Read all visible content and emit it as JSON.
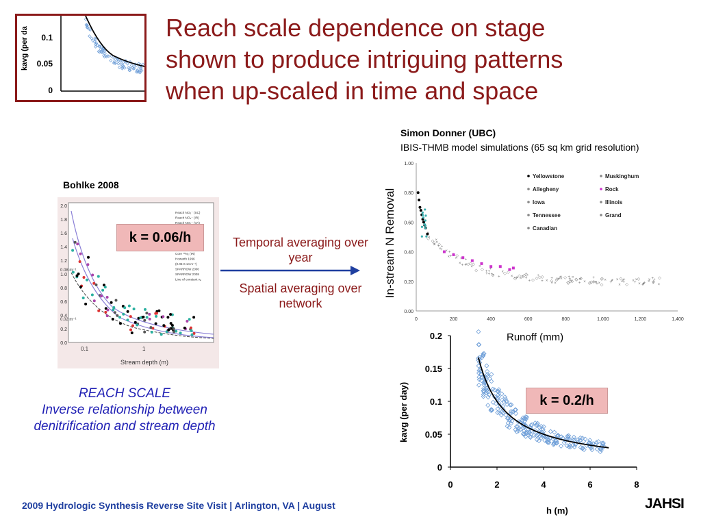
{
  "title_lines": [
    "Reach scale dependence on stage",
    "shown to produce intriguing patterns",
    "when up-scaled in time and space"
  ],
  "thumbnail": {
    "ylabel": "kavg (per da",
    "ticks": [
      "0.1",
      "0.05",
      "0"
    ]
  },
  "bohlke": {
    "label": "Bohlke 2008",
    "k_label": "k = 0.06/h",
    "xlabel": "Stream depth (m)",
    "yticks": [
      "2.0",
      "1.8",
      "1.6",
      "1.4",
      "1.2",
      "1.0",
      "0.8",
      "0.6",
      "0.4",
      "0.2",
      "0.0"
    ],
    "xticks": [
      "0.1",
      "1"
    ],
    "annotations": [
      "0.08 m⁻¹",
      "0.02 m⁻¹"
    ],
    "legend": [
      "Reach NO₃⁻ (SC)",
      "Reach NO₃⁻ (IR)",
      "Reach NO₃⁻ (VA)",
      "Reach ¹⁵N (SC)",
      "Reach ¹⁵N (IR)",
      "Core N₂ (SC)",
      "Core N₂ (IR)",
      "Core ¹⁵N₂ (SC)",
      "Core ¹⁵N₂ (IR)",
      "Howarth 1996",
      "(0.05-0.14 m⁻¹)",
      "SPARROW 2000",
      "SPARROW 2008",
      "Line of constant vₑ"
    ]
  },
  "arrow": {
    "temporal": "Temporal averaging over year",
    "spatial": "Spatial averaging over network"
  },
  "reach": {
    "line1": "REACH SCALE",
    "line2": "Inverse relationship between",
    "line3": "denitrification and stream depth"
  },
  "donner": {
    "name": "Simon Donner (UBC)",
    "desc": "IBIS-THMB model simulations (65 sq km grid resolution)",
    "ylabel": "In-stream N Removal",
    "xlabel": "Runoff (mm)",
    "yticks": [
      "1.00",
      "0.80",
      "0.60",
      "0.40",
      "0.20",
      "0.00"
    ],
    "xticks": [
      "0",
      "200",
      "400",
      "600",
      "800",
      "1,000",
      "1,200",
      "1,400"
    ],
    "legend": [
      "Yellowstone",
      "Muskinghum",
      "Allegheny",
      "Rock",
      "Iowa",
      "Illinois",
      "Tennessee",
      "Grand",
      "Canadian"
    ]
  },
  "stage": {
    "ylabel": "kavg (per day)",
    "xlabel": "h (m)",
    "k_label": "k = 0.2/h",
    "yticks": [
      "0.2",
      "0.15",
      "0.1",
      "0.05",
      "0"
    ],
    "xticks": [
      "0",
      "2",
      "4",
      "6",
      "8"
    ]
  },
  "footer": "2009 Hydrologic Synthesis Reverse Site Visit | Arlington, VA | August",
  "logo": "JAHSI",
  "colors": {
    "title": "#8b1a1a",
    "frame": "#8b1a1a",
    "k_box": "#f0b8b8",
    "reach_text": "#1f1fb4",
    "footer_text": "#1f3fa0",
    "arrow": "#1f3fa0",
    "stage_points": "#6f9fd8"
  },
  "chart_data": [
    {
      "type": "scatter",
      "title": "",
      "xlabel": "h (m)",
      "ylabel": "kavg (per day)",
      "xlim": [
        0,
        8
      ],
      "ylim": [
        0,
        0.2
      ],
      "grid": false,
      "series": [
        {
          "name": "",
          "x": [
            1.2,
            1.4,
            1.6,
            1.8,
            2.0,
            2.2,
            2.5,
            2.8,
            3.2,
            3.6,
            4.0,
            4.5,
            5.0,
            5.5,
            6.0,
            6.5,
            6.8
          ],
          "y": [
            0.16,
            0.14,
            0.125,
            0.11,
            0.1,
            0.09,
            0.08,
            0.07,
            0.062,
            0.055,
            0.05,
            0.045,
            0.04,
            0.037,
            0.035,
            0.032,
            0.03
          ]
        }
      ],
      "fit": {
        "name": "k = 0.2/h",
        "k": 0.2,
        "x_range": [
          1.2,
          6.8
        ]
      }
    },
    {
      "type": "scatter",
      "title": "",
      "xlabel": "Runoff (mm)",
      "ylabel": "In-stream N Removal",
      "xlim": [
        0,
        1400
      ],
      "ylim": [
        0,
        1.0
      ],
      "legend_position": "top-right",
      "series": [
        {
          "name": "Yellowstone",
          "x": [
            10,
            15,
            20,
            25,
            30,
            35,
            40,
            45,
            50,
            60
          ],
          "y": [
            0.8,
            0.75,
            0.7,
            0.68,
            0.65,
            0.62,
            0.6,
            0.58,
            0.56,
            0.52
          ]
        },
        {
          "name": "Rock",
          "x": [
            150,
            200,
            250,
            300,
            350,
            400,
            450,
            500,
            520
          ],
          "y": [
            0.4,
            0.38,
            0.36,
            0.34,
            0.32,
            0.3,
            0.3,
            0.28,
            0.29
          ]
        },
        {
          "name": "Muskinghum",
          "x": [
            100,
            200,
            300,
            400,
            500,
            600,
            700
          ],
          "y": [
            0.45,
            0.4,
            0.37,
            0.34,
            0.31,
            0.29,
            0.27
          ]
        },
        {
          "name": "Illinois",
          "x": [
            300,
            450,
            600,
            750,
            900,
            1050,
            1200
          ],
          "y": [
            0.33,
            0.3,
            0.28,
            0.26,
            0.24,
            0.23,
            0.22
          ]
        }
      ]
    },
    {
      "type": "scatter",
      "title": "",
      "xlabel": "Stream depth (m)",
      "ylabel": "",
      "xscale": "log",
      "ylim": [
        0,
        2.0
      ],
      "series": [
        {
          "name": "Core N₂ (SC)",
          "x": [
            0.1,
            0.12,
            0.15,
            0.2,
            0.3,
            0.5,
            0.7
          ],
          "y": [
            1.2,
            0.9,
            0.7,
            0.5,
            0.3,
            0.15,
            0.1
          ]
        }
      ]
    }
  ]
}
